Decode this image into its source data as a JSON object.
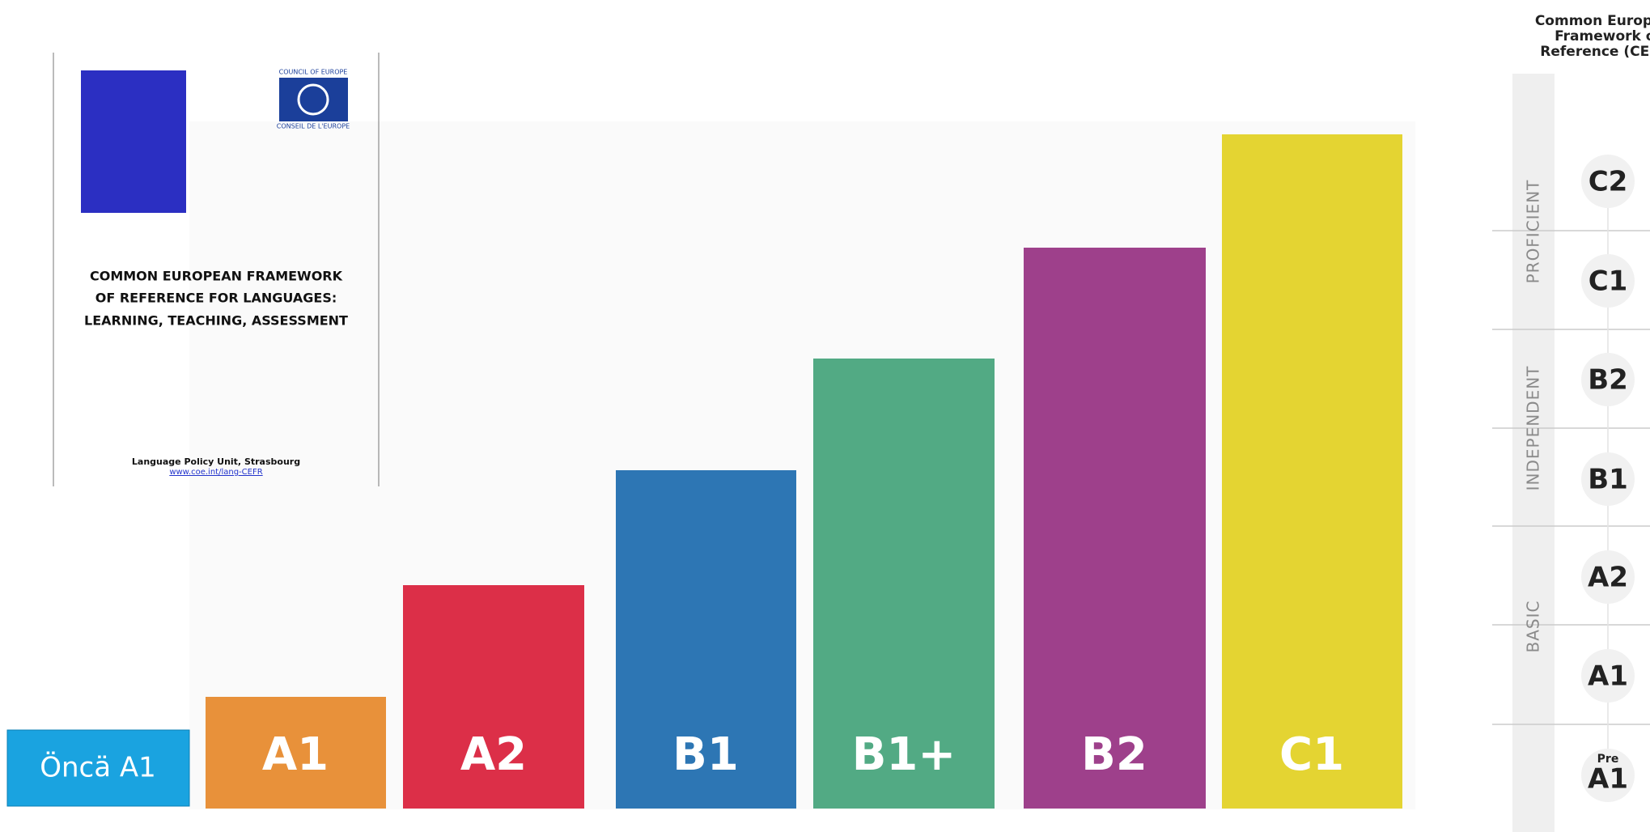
{
  "document": {
    "council_top": "COUNCIL OF EUROPE",
    "council_bottom": "CONSEIL DE L'EUROPE",
    "title_lines": [
      "COMMON EUROPEAN FRAMEWORK",
      "OF REFERENCE FOR LANGUAGES:",
      "LEARNING, TEACHING, ASSESSMENT"
    ],
    "publisher": "Language Policy Unit, Strasbourg",
    "url": "www.coe.int/lang-CEFR"
  },
  "bars": [
    "A1",
    "A2",
    "B1",
    "B1+",
    "B2",
    "C1"
  ],
  "button": "Öncä A1",
  "panel": {
    "title_lines": [
      "Common European",
      "Framework of",
      "Reference (CEFR)"
    ],
    "groups": [
      "PROFICIENT",
      "INDEPENDENT",
      "BASIC"
    ],
    "levels": [
      "C2",
      "C1",
      "B2",
      "B1",
      "A2",
      "A1",
      "A1"
    ],
    "pre": "Pre"
  }
}
